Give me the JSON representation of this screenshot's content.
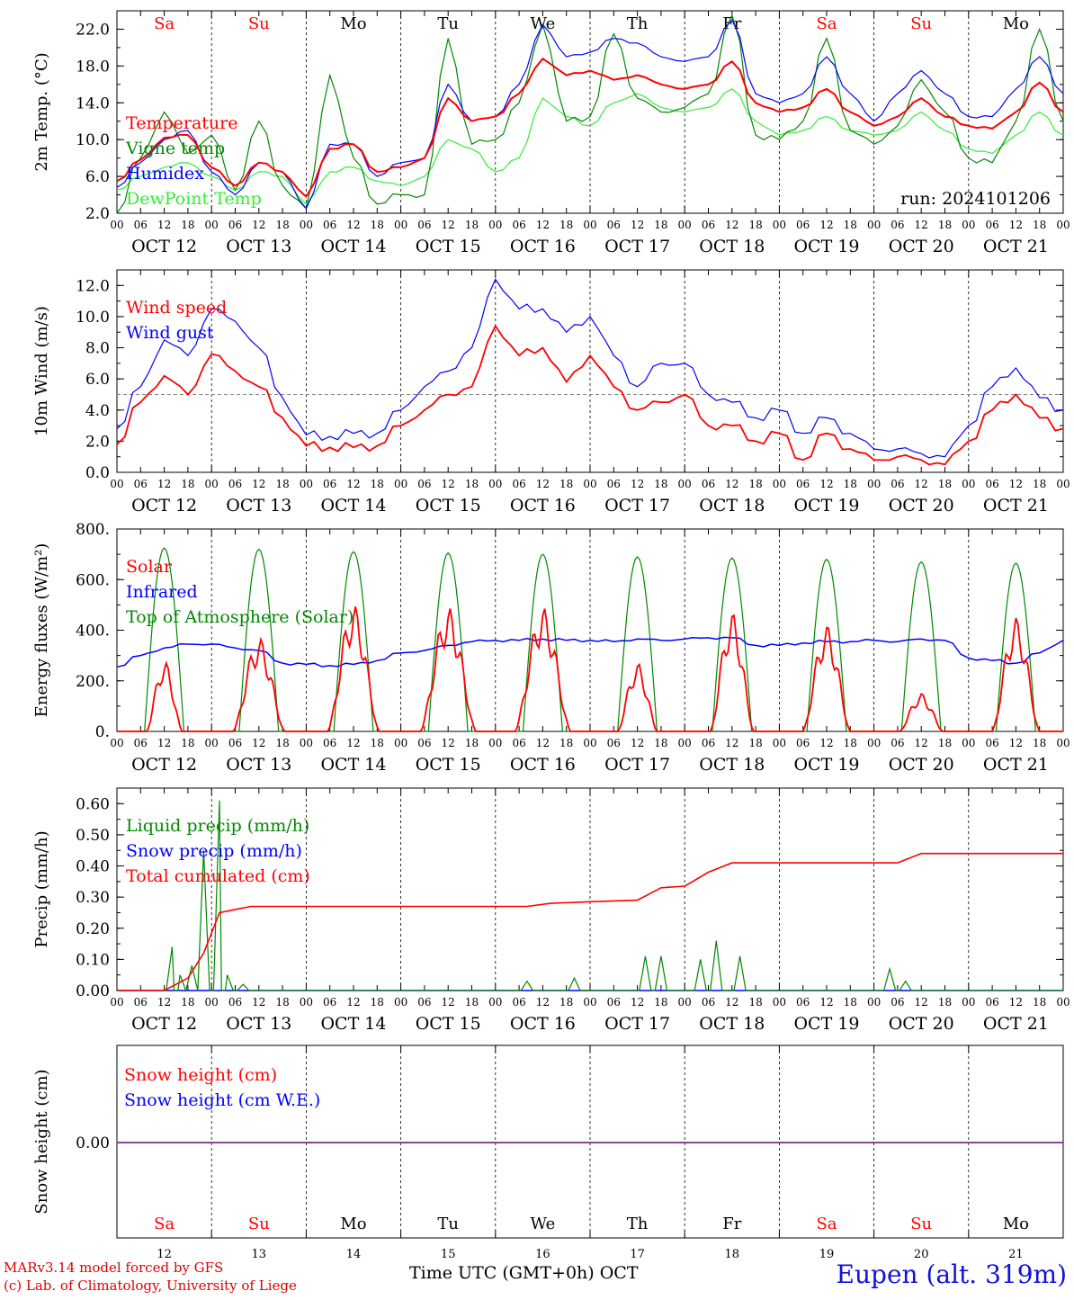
{
  "chart_data": [
    {
      "type": "line",
      "ylabel": "2m Temp. (°C)",
      "ylim": [
        2.0,
        24.0
      ],
      "yticks": [
        "2.0",
        "6.0",
        "10.0",
        "14.0",
        "18.0",
        "22.0"
      ],
      "ytick_values": [
        2,
        6,
        10,
        14,
        18,
        22
      ],
      "annotation": "run: 2024101206",
      "x_unit": "hours since OCT 12 00 UTC",
      "x": [
        0,
        6,
        12,
        18,
        24,
        30,
        36,
        42,
        48,
        54,
        60,
        66,
        72,
        78,
        84,
        90,
        96,
        102,
        108,
        114,
        120,
        126,
        132,
        138,
        144,
        150,
        156,
        162,
        168,
        174,
        180,
        186,
        192,
        198,
        204,
        210,
        216,
        222,
        228,
        234,
        240
      ],
      "series": [
        {
          "name": "Temperature",
          "color": "#ff0000",
          "values": [
            5.5,
            7.8,
            10.2,
            10.5,
            7.0,
            5.0,
            7.5,
            6.5,
            3.8,
            9.0,
            9.5,
            6.5,
            7.0,
            8.0,
            14.5,
            12.0,
            12.5,
            15.0,
            18.8,
            17.0,
            17.5,
            16.5,
            17.0,
            16.0,
            15.5,
            16.0,
            18.5,
            14.0,
            13.0,
            13.5,
            15.5,
            13.0,
            11.5,
            12.5,
            14.5,
            12.5,
            11.5,
            11.2,
            13.0,
            16.2,
            13.0
          ]
        },
        {
          "name": "Vigne temp",
          "color": "#008800",
          "values": [
            2.0,
            8.0,
            13.0,
            8.5,
            10.5,
            4.5,
            12.0,
            5.0,
            2.5,
            17.0,
            8.0,
            3.0,
            4.0,
            4.0,
            21.0,
            9.5,
            10.0,
            14.0,
            22.5,
            12.0,
            12.5,
            21.5,
            14.5,
            13.0,
            13.5,
            15.0,
            23.5,
            10.5,
            10.0,
            12.0,
            21.0,
            11.0,
            9.5,
            11.5,
            16.5,
            13.0,
            8.0,
            7.5,
            12.0,
            22.0,
            12.0
          ]
        },
        {
          "name": "Humidex",
          "color": "#0000ff",
          "values": [
            4.8,
            7.5,
            10.0,
            11.0,
            6.5,
            4.0,
            7.5,
            6.5,
            2.5,
            9.5,
            9.5,
            6.0,
            7.5,
            8.0,
            16.0,
            12.0,
            12.5,
            16.0,
            22.5,
            19.0,
            19.5,
            21.0,
            20.5,
            19.0,
            18.5,
            19.0,
            23.0,
            15.0,
            14.0,
            15.0,
            19.0,
            15.0,
            12.0,
            15.0,
            17.5,
            15.0,
            12.5,
            12.5,
            15.5,
            19.0,
            15.0
          ]
        },
        {
          "name": "DewPoint Temp",
          "color": "#33ee33",
          "values": [
            4.5,
            6.0,
            7.0,
            7.5,
            6.0,
            4.5,
            6.5,
            6.0,
            3.0,
            6.5,
            7.0,
            5.5,
            5.0,
            6.0,
            10.0,
            9.0,
            6.5,
            8.0,
            14.5,
            12.5,
            11.5,
            14.0,
            15.0,
            13.5,
            13.0,
            13.5,
            15.5,
            12.0,
            10.5,
            11.0,
            12.5,
            11.0,
            10.5,
            11.0,
            13.0,
            11.0,
            9.0,
            8.5,
            10.5,
            13.0,
            10.5
          ]
        }
      ]
    },
    {
      "type": "line",
      "ylabel": "10m Wind (m/s)",
      "ylim": [
        0.0,
        13.0
      ],
      "yticks": [
        "0.0",
        "2.0",
        "4.0",
        "6.0",
        "8.0",
        "10.0",
        "12.0"
      ],
      "ytick_values": [
        0,
        2,
        4,
        6,
        8,
        10,
        12
      ],
      "reference_line": 5.0,
      "x": [
        0,
        6,
        12,
        18,
        24,
        30,
        36,
        42,
        48,
        54,
        60,
        66,
        72,
        78,
        84,
        90,
        96,
        102,
        108,
        114,
        120,
        126,
        132,
        138,
        144,
        150,
        156,
        162,
        168,
        174,
        180,
        186,
        192,
        198,
        204,
        210,
        216,
        222,
        228,
        234,
        240
      ],
      "series": [
        {
          "name": "Wind speed",
          "color": "#ff0000",
          "values": [
            1.8,
            4.5,
            6.2,
            5.0,
            7.6,
            6.5,
            5.5,
            3.5,
            1.7,
            1.6,
            1.6,
            1.7,
            3.0,
            4.0,
            5.0,
            5.5,
            9.4,
            7.5,
            8.0,
            5.8,
            7.5,
            5.5,
            4.0,
            4.5,
            5.0,
            3.0,
            3.0,
            2.0,
            2.5,
            0.8,
            2.5,
            1.5,
            0.8,
            1.0,
            0.8,
            0.5,
            2.0,
            4.0,
            5.0,
            3.5,
            2.8
          ]
        },
        {
          "name": "Wind gust",
          "color": "#0000ff",
          "values": [
            2.8,
            5.5,
            8.5,
            7.5,
            10.5,
            9.7,
            8.0,
            4.8,
            2.4,
            2.3,
            2.5,
            2.5,
            4.0,
            5.5,
            6.5,
            8.0,
            12.4,
            10.5,
            10.5,
            9.0,
            10.0,
            7.5,
            5.5,
            7.0,
            7.0,
            5.0,
            4.5,
            3.5,
            4.0,
            2.5,
            3.5,
            2.5,
            1.5,
            1.5,
            1.2,
            1.0,
            3.0,
            5.5,
            6.7,
            4.8,
            4.0
          ]
        }
      ]
    },
    {
      "type": "line",
      "ylabel": "Energy fluxes (W/m²)",
      "ylim": [
        0,
        800
      ],
      "yticks": [
        "0.",
        "200.",
        "400.",
        "600.",
        "800."
      ],
      "ytick_values": [
        0,
        200,
        400,
        600,
        800
      ],
      "series": [
        {
          "name": "Solar",
          "color": "#ff0000",
          "peaks": [
            280,
            370,
            500,
            490,
            490,
            270,
            470,
            420,
            150,
            450
          ],
          "peak_widths": [
            3,
            7,
            7,
            8,
            8,
            4,
            5,
            6,
            5,
            6
          ]
        },
        {
          "name": "Infrared",
          "color": "#0000ff",
          "values": [
            255,
            300,
            330,
            345,
            345,
            330,
            320,
            270,
            265,
            260,
            265,
            280,
            310,
            320,
            340,
            355,
            360,
            360,
            365,
            360,
            360,
            355,
            365,
            360,
            365,
            370,
            370,
            340,
            340,
            350,
            355,
            355,
            360,
            355,
            365,
            360,
            290,
            280,
            270,
            310,
            360
          ]
        },
        {
          "name": "Top of Atmosphere (Solar)",
          "color": "#008800",
          "peaks": [
            725,
            720,
            710,
            705,
            700,
            690,
            685,
            680,
            670,
            665
          ],
          "peak_widths": [
            10,
            10,
            10,
            10,
            10,
            10,
            10,
            10,
            10,
            10
          ]
        }
      ]
    },
    {
      "type": "line",
      "ylabel": "Precip (mm/h)",
      "ylim": [
        0.0,
        0.65
      ],
      "yticks": [
        "0.00",
        "0.10",
        "0.20",
        "0.30",
        "0.40",
        "0.50",
        "0.60"
      ],
      "ytick_values": [
        0,
        0.1,
        0.2,
        0.3,
        0.4,
        0.5,
        0.6
      ],
      "series": [
        {
          "name": "Liquid precip (mm/h)",
          "color": "#008800",
          "events": [
            [
              14,
              0.14
            ],
            [
              16,
              0.05
            ],
            [
              19,
              0.08
            ],
            [
              22,
              0.45
            ],
            [
              26,
              0.61
            ],
            [
              28,
              0.05
            ],
            [
              32,
              0.02
            ],
            [
              104,
              0.03
            ],
            [
              116,
              0.04
            ],
            [
              134,
              0.11
            ],
            [
              138,
              0.11
            ],
            [
              148,
              0.1
            ],
            [
              152,
              0.16
            ],
            [
              158,
              0.11
            ],
            [
              196,
              0.07
            ],
            [
              200,
              0.03
            ]
          ]
        },
        {
          "name": "Snow precip (mm/h)",
          "color": "#0000ff",
          "values": []
        },
        {
          "name": "Total cumulated (cm)",
          "color": "#ff0000",
          "points": [
            [
              0,
              0
            ],
            [
              12,
              0.0
            ],
            [
              18,
              0.04
            ],
            [
              22,
              0.12
            ],
            [
              26,
              0.25
            ],
            [
              34,
              0.27
            ],
            [
              104,
              0.27
            ],
            [
              110,
              0.28
            ],
            [
              120,
              0.285
            ],
            [
              132,
              0.29
            ],
            [
              138,
              0.33
            ],
            [
              144,
              0.335
            ],
            [
              150,
              0.38
            ],
            [
              156,
              0.41
            ],
            [
              190,
              0.41
            ],
            [
              198,
              0.41
            ],
            [
              204,
              0.44
            ],
            [
              240,
              0.44
            ]
          ]
        }
      ]
    },
    {
      "type": "line",
      "ylabel": "Snow height (cm)",
      "yticks": [
        "0.00"
      ],
      "series": [
        {
          "name": "Snow height (cm)",
          "color": "#ff0000",
          "values": [
            0.0,
            0.0
          ]
        },
        {
          "name": "Snow height (cm W.E.)",
          "color": "#0000ff",
          "values": [
            0.0,
            0.0
          ]
        }
      ]
    }
  ],
  "day_labels": [
    "Sa",
    "Su",
    "Mo",
    "Tu",
    "We",
    "Th",
    "Fr",
    "Sa",
    "Su",
    "Mo"
  ],
  "weekend_days": [
    0,
    1,
    7,
    8
  ],
  "date_labels": [
    "OCT 12",
    "OCT 13",
    "OCT 14",
    "OCT 15",
    "OCT 16",
    "OCT 17",
    "OCT 18",
    "OCT 19",
    "OCT 20",
    "OCT 21"
  ],
  "hour_ticks": [
    "00",
    "06",
    "12",
    "18"
  ],
  "hour_tick_end": "00",
  "bottom_day_numbers": [
    "12",
    "13",
    "14",
    "15",
    "16",
    "17",
    "18",
    "19",
    "20",
    "21"
  ],
  "footer": {
    "model": "MARv3.14 model forced by GFS",
    "copyright": "(c) Lab. of Climatology, University of Liege",
    "axis_title": "Time UTC (GMT+0h) OCT",
    "location": "Eupen (alt. 319m)"
  },
  "colors": {
    "weekend": "#ff0000",
    "weekday": "#000000"
  }
}
